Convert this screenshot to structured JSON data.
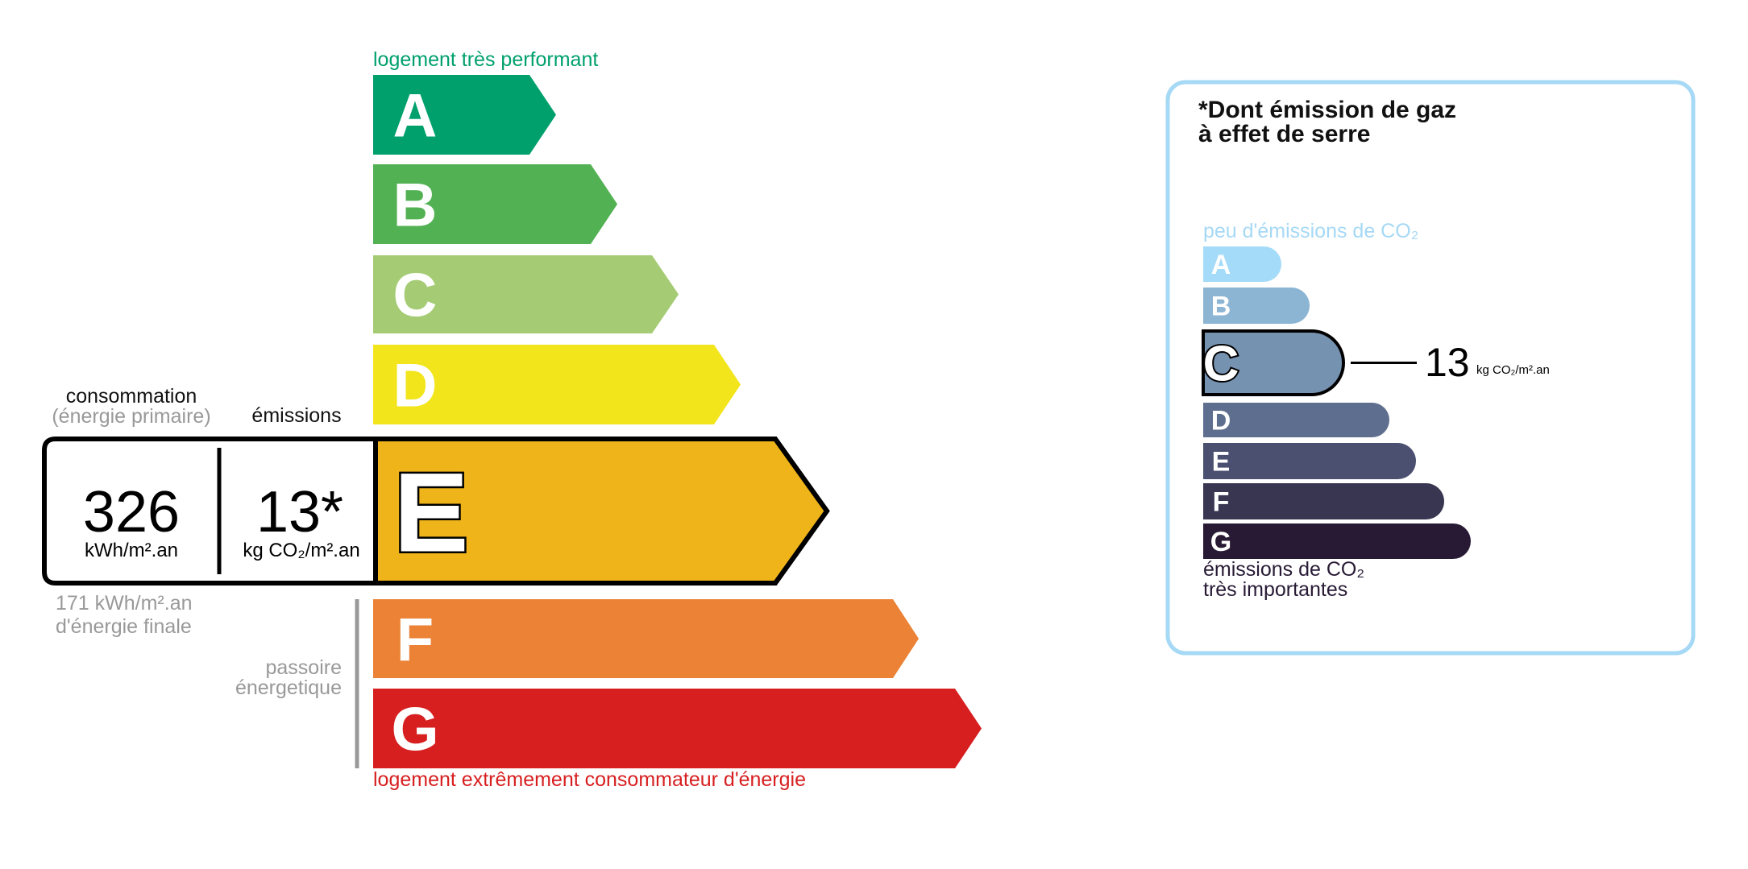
{
  "energy_label": {
    "top_caption": "logement très performant",
    "bottom_caption": "logement extrêmement consommateur d'énergie",
    "classes": [
      {
        "letter": "A",
        "color": "#00a06d"
      },
      {
        "letter": "B",
        "color": "#52b153"
      },
      {
        "letter": "C",
        "color": "#a5cc74"
      },
      {
        "letter": "D",
        "color": "#f2e51b"
      },
      {
        "letter": "E",
        "color": "#efb41a"
      },
      {
        "letter": "F",
        "color": "#eb8235"
      },
      {
        "letter": "G",
        "color": "#d71f20"
      }
    ],
    "current_class": "E",
    "consumption_label": "consommation",
    "consumption_sublabel": "(énergie primaire)",
    "emissions_label": "émissions",
    "consumption_value": "326",
    "consumption_unit": "kWh/m².an",
    "emissions_value": "13*",
    "emissions_unit": "kg CO₂/m².an",
    "final_energy_value": "171 kWh/m².an",
    "final_energy_label": "d'énergie finale",
    "passoire_line1": "passoire",
    "passoire_line2": "énergetique"
  },
  "ges_panel": {
    "title_line1": "*Dont émission de gaz",
    "title_line2": "à effet de serre",
    "top_caption": "peu d'émissions de CO₂",
    "bottom_caption_line1": "émissions de CO₂",
    "bottom_caption_line2": "très importantes",
    "classes": [
      {
        "letter": "A",
        "color": "#a4dbf8"
      },
      {
        "letter": "B",
        "color": "#8cb4d3"
      },
      {
        "letter": "C",
        "color": "#7692b1"
      },
      {
        "letter": "D",
        "color": "#5e6e8f"
      },
      {
        "letter": "E",
        "color": "#4b5070"
      },
      {
        "letter": "F",
        "color": "#383651"
      },
      {
        "letter": "G",
        "color": "#281a35"
      }
    ],
    "current_class": "C",
    "value": "13",
    "unit": "kg CO₂/m².an",
    "border_color": "#a6d9f5"
  }
}
